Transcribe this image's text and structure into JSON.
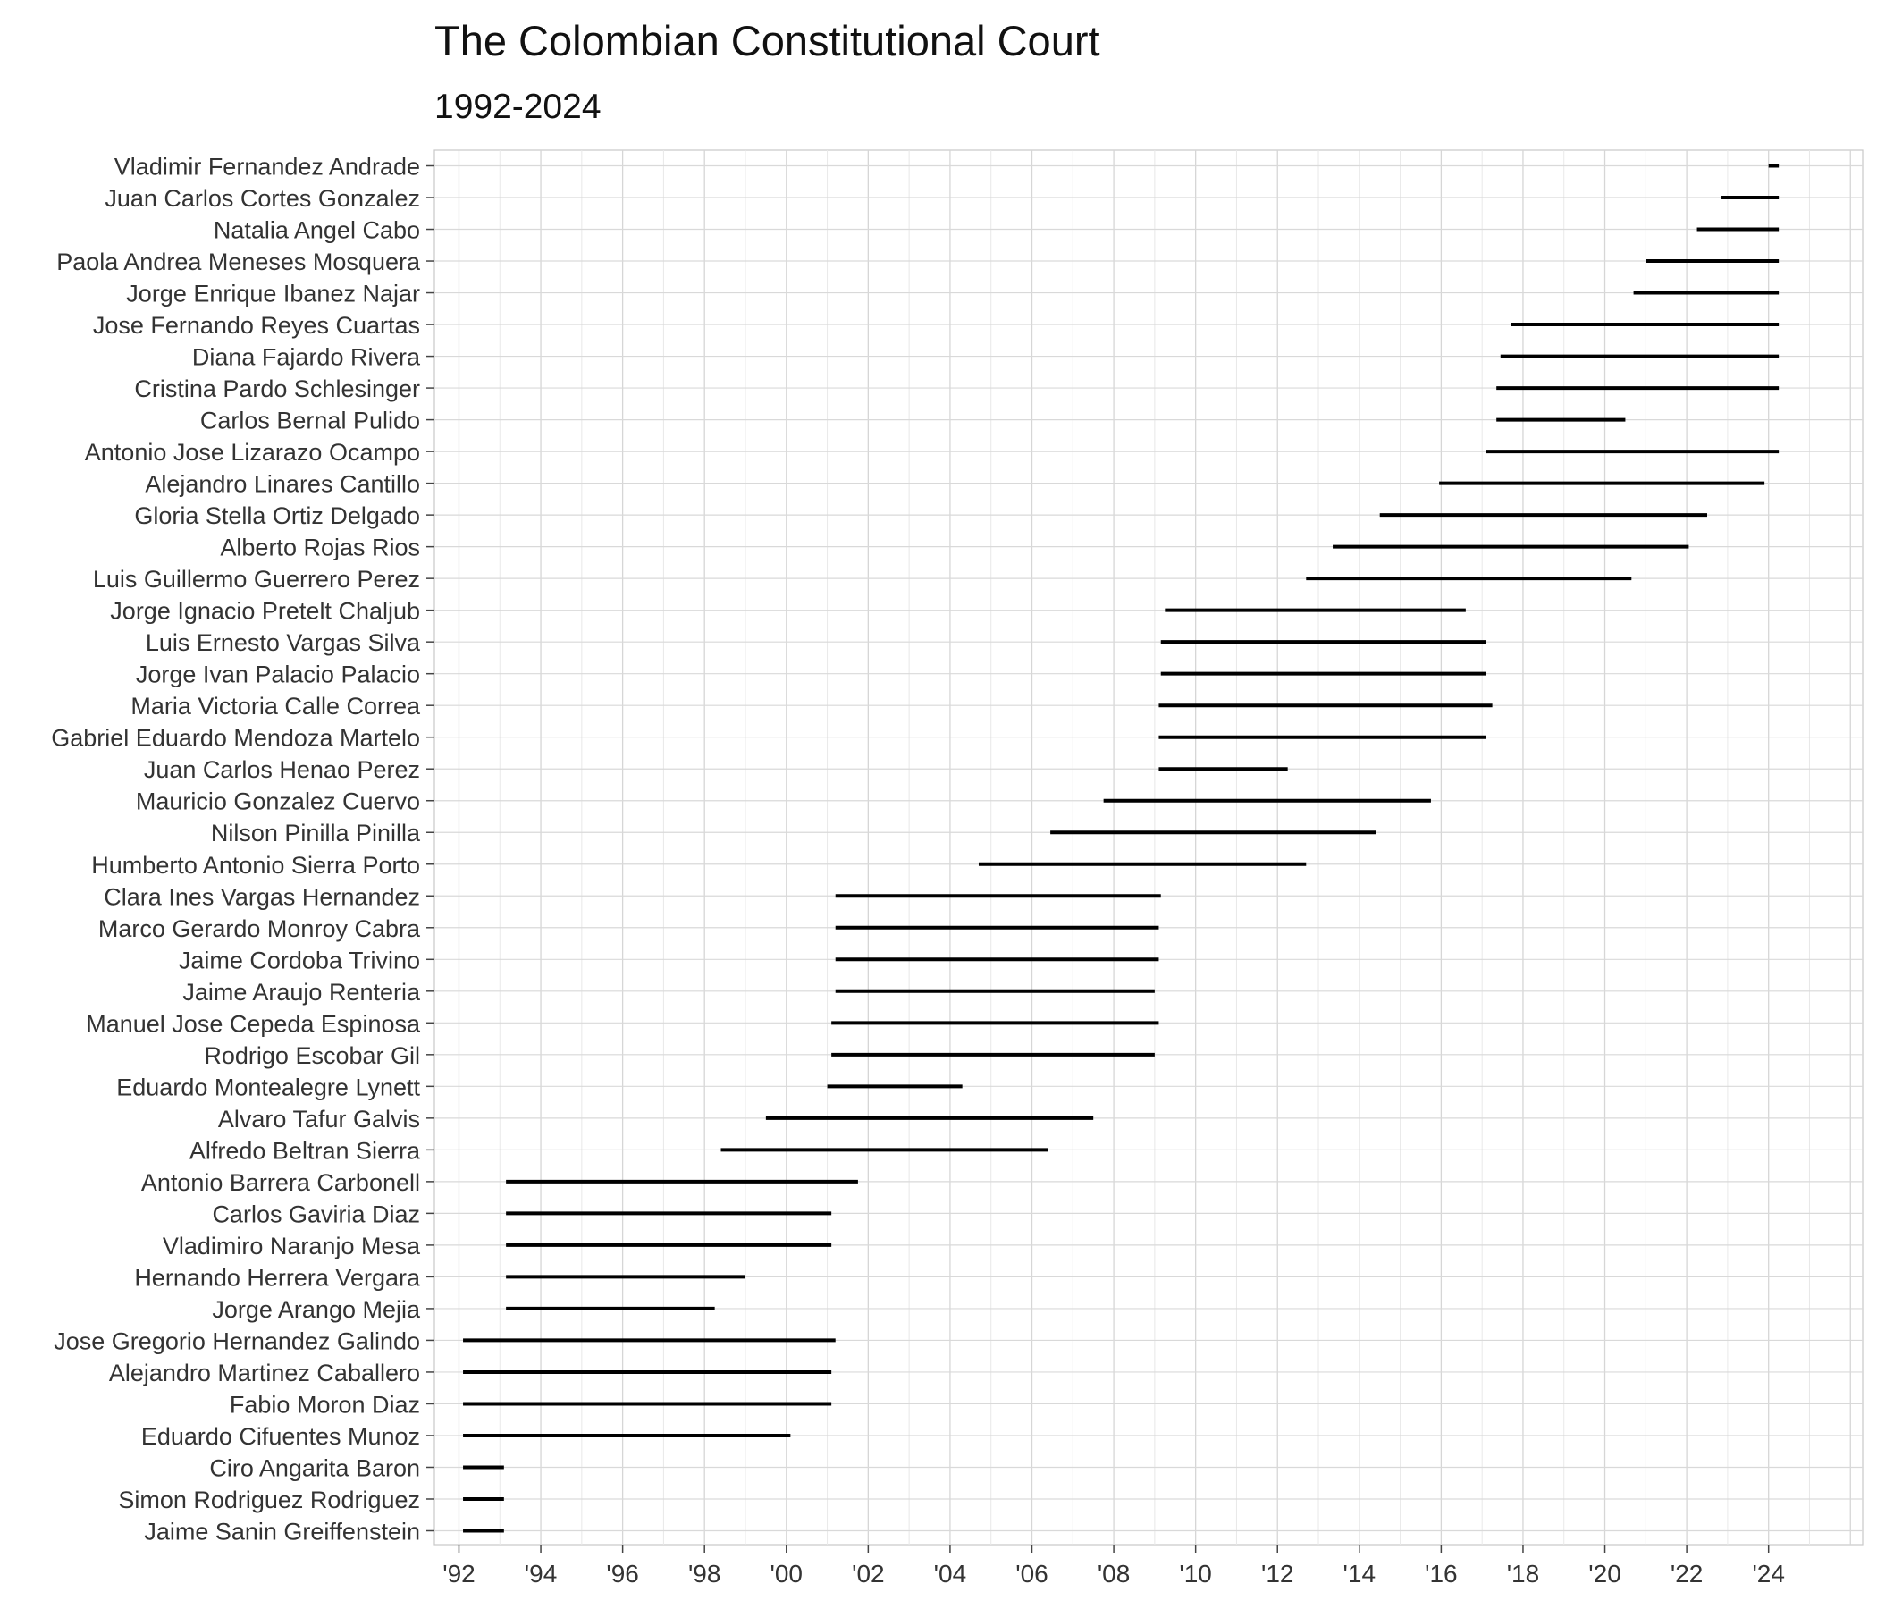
{
  "chart_data": {
    "type": "gantt",
    "title": "The Colombian Constitutional Court",
    "subtitle": "1992-2024",
    "xlabel": "",
    "ylabel": "",
    "xlim": [
      1991.4,
      2026.3
    ],
    "grid": true,
    "legend": "none",
    "bar_color": "#000000",
    "x_ticks": [
      {
        "value": 1992,
        "label": "'92"
      },
      {
        "value": 1994,
        "label": "'94"
      },
      {
        "value": 1996,
        "label": "'96"
      },
      {
        "value": 1998,
        "label": "'98"
      },
      {
        "value": 2000,
        "label": "'00"
      },
      {
        "value": 2002,
        "label": "'02"
      },
      {
        "value": 2004,
        "label": "'04"
      },
      {
        "value": 2006,
        "label": "'06"
      },
      {
        "value": 2008,
        "label": "'08"
      },
      {
        "value": 2010,
        "label": "'10"
      },
      {
        "value": 2012,
        "label": "'12"
      },
      {
        "value": 2014,
        "label": "'14"
      },
      {
        "value": 2016,
        "label": "'16"
      },
      {
        "value": 2018,
        "label": "'18"
      },
      {
        "value": 2020,
        "label": "'20"
      },
      {
        "value": 2022,
        "label": "'22"
      },
      {
        "value": 2024,
        "label": "'24"
      }
    ],
    "justices": [
      {
        "name": "Vladimir Fernandez Andrade",
        "start": 2024.0,
        "end": 2024.25
      },
      {
        "name": "Juan Carlos Cortes Gonzalez",
        "start": 2022.85,
        "end": 2024.25
      },
      {
        "name": "Natalia Angel Cabo",
        "start": 2022.25,
        "end": 2024.25
      },
      {
        "name": "Paola Andrea Meneses Mosquera",
        "start": 2021.0,
        "end": 2024.25
      },
      {
        "name": "Jorge Enrique Ibanez Najar",
        "start": 2020.7,
        "end": 2024.25
      },
      {
        "name": "Jose Fernando Reyes Cuartas",
        "start": 2017.7,
        "end": 2024.25
      },
      {
        "name": "Diana Fajardo Rivera",
        "start": 2017.45,
        "end": 2024.25
      },
      {
        "name": "Cristina Pardo Schlesinger",
        "start": 2017.35,
        "end": 2024.25
      },
      {
        "name": "Carlos Bernal Pulido",
        "start": 2017.35,
        "end": 2020.5
      },
      {
        "name": "Antonio Jose Lizarazo Ocampo",
        "start": 2017.1,
        "end": 2024.25
      },
      {
        "name": "Alejandro Linares Cantillo",
        "start": 2015.95,
        "end": 2023.9
      },
      {
        "name": "Gloria Stella Ortiz Delgado",
        "start": 2014.5,
        "end": 2022.5
      },
      {
        "name": "Alberto Rojas Rios",
        "start": 2013.35,
        "end": 2022.05
      },
      {
        "name": "Luis Guillermo Guerrero Perez",
        "start": 2012.7,
        "end": 2020.65
      },
      {
        "name": "Jorge Ignacio Pretelt Chaljub",
        "start": 2009.25,
        "end": 2016.6
      },
      {
        "name": "Luis Ernesto Vargas Silva",
        "start": 2009.15,
        "end": 2017.1
      },
      {
        "name": "Jorge Ivan Palacio Palacio",
        "start": 2009.15,
        "end": 2017.1
      },
      {
        "name": "Maria Victoria Calle Correa",
        "start": 2009.1,
        "end": 2017.25
      },
      {
        "name": "Gabriel Eduardo Mendoza Martelo",
        "start": 2009.1,
        "end": 2017.1
      },
      {
        "name": "Juan Carlos Henao Perez",
        "start": 2009.1,
        "end": 2012.25
      },
      {
        "name": "Mauricio Gonzalez Cuervo",
        "start": 2007.75,
        "end": 2015.75
      },
      {
        "name": "Nilson Pinilla Pinilla",
        "start": 2006.45,
        "end": 2014.4
      },
      {
        "name": "Humberto Antonio Sierra Porto",
        "start": 2004.7,
        "end": 2012.7
      },
      {
        "name": "Clara Ines Vargas Hernandez",
        "start": 2001.2,
        "end": 2009.15
      },
      {
        "name": "Marco Gerardo Monroy Cabra",
        "start": 2001.2,
        "end": 2009.1
      },
      {
        "name": "Jaime Cordoba Trivino",
        "start": 2001.2,
        "end": 2009.1
      },
      {
        "name": "Jaime Araujo Renteria",
        "start": 2001.2,
        "end": 2009.0
      },
      {
        "name": "Manuel Jose Cepeda Espinosa",
        "start": 2001.1,
        "end": 2009.1
      },
      {
        "name": "Rodrigo Escobar Gil",
        "start": 2001.1,
        "end": 2009.0
      },
      {
        "name": "Eduardo Montealegre Lynett",
        "start": 2001.0,
        "end": 2004.3
      },
      {
        "name": "Alvaro Tafur Galvis",
        "start": 1999.5,
        "end": 2007.5
      },
      {
        "name": "Alfredo Beltran Sierra",
        "start": 1998.4,
        "end": 2006.4
      },
      {
        "name": "Antonio Barrera Carbonell",
        "start": 1993.15,
        "end": 2001.75
      },
      {
        "name": "Carlos Gaviria Diaz",
        "start": 1993.15,
        "end": 2001.1
      },
      {
        "name": "Vladimiro Naranjo Mesa",
        "start": 1993.15,
        "end": 2001.1
      },
      {
        "name": "Hernando Herrera Vergara",
        "start": 1993.15,
        "end": 1999.0
      },
      {
        "name": "Jorge Arango Mejia",
        "start": 1993.15,
        "end": 1998.25
      },
      {
        "name": "Jose Gregorio Hernandez Galindo",
        "start": 1992.1,
        "end": 2001.2
      },
      {
        "name": "Alejandro Martinez Caballero",
        "start": 1992.1,
        "end": 2001.1
      },
      {
        "name": "Fabio Moron Diaz",
        "start": 1992.1,
        "end": 2001.1
      },
      {
        "name": "Eduardo Cifuentes Munoz",
        "start": 1992.1,
        "end": 2000.1
      },
      {
        "name": "Ciro Angarita Baron",
        "start": 1992.1,
        "end": 1993.1
      },
      {
        "name": "Simon Rodriguez Rodriguez",
        "start": 1992.1,
        "end": 1993.1
      },
      {
        "name": "Jaime Sanin Greiffenstein",
        "start": 1992.1,
        "end": 1993.1
      }
    ]
  }
}
